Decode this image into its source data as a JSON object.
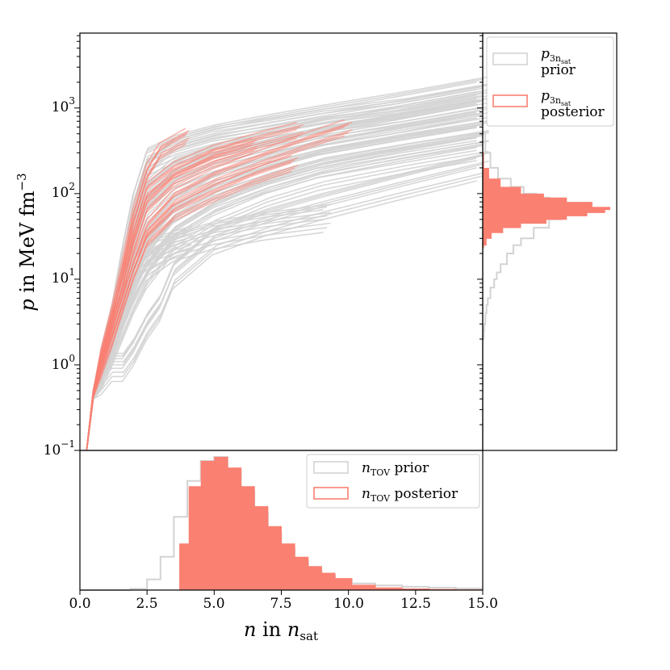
{
  "colors": {
    "prior": "#d3d3d3",
    "posterior": "#fa8072",
    "axes": "#000000"
  },
  "chart_data": [
    {
      "name": "main",
      "type": "line",
      "xlabel": "n in n_sat",
      "xlabel_parts": {
        "var": "n",
        "word": "in",
        "unit": "n",
        "unit_sub": "sat"
      },
      "ylabel": "p in MeV fm^-3",
      "ylabel_parts": {
        "var": "p",
        "word": "in MeV fm",
        "sup": "−3"
      },
      "yscale": "log",
      "xlim": [
        0,
        15
      ],
      "ylim": [
        0.1,
        7500
      ],
      "yticks": [
        {
          "value": 1000,
          "base": "10",
          "exp": "3"
        },
        {
          "value": 100,
          "base": "10",
          "exp": "2"
        },
        {
          "value": 10,
          "base": "10",
          "exp": "1"
        },
        {
          "value": 1,
          "base": "10",
          "exp": "0"
        },
        {
          "value": 0.1,
          "base": "10",
          "exp": "−1"
        }
      ],
      "series": [
        {
          "name": "prior",
          "color": "#d3d3d3",
          "curves": [
            {
              "x": [
                0.25,
                0.5,
                0.8,
                1.2,
                1.6,
                2.0,
                2.5,
                3.5,
                5,
                7,
                9,
                12,
                15
              ],
              "y": [
                0.1,
                0.5,
                1.2,
                4,
                20,
                80,
                250,
                350,
                470,
                620,
                800,
                1150,
                1700
              ]
            },
            {
              "x": [
                0.25,
                0.5,
                0.8,
                1.2,
                1.6,
                2.0,
                2.5,
                3.5,
                5,
                7,
                9,
                12,
                15
              ],
              "y": [
                0.1,
                0.45,
                1.0,
                3,
                10,
                35,
                100,
                180,
                280,
                400,
                560,
                800,
                1200
              ]
            },
            {
              "x": [
                0.25,
                0.5,
                0.8,
                1.2,
                1.6,
                2.0,
                2.5,
                3.5,
                5,
                7,
                9,
                12,
                15
              ],
              "y": [
                0.1,
                0.45,
                0.9,
                2,
                5,
                12,
                30,
                70,
                130,
                210,
                310,
                460,
                650
              ]
            },
            {
              "x": [
                0.25,
                0.5,
                0.8,
                1.2,
                1.6,
                2.0,
                2.5,
                3.5,
                5,
                7,
                9,
                12,
                15
              ],
              "y": [
                0.1,
                0.4,
                0.8,
                1.5,
                3,
                6,
                12,
                30,
                60,
                110,
                170,
                260,
                380
              ]
            },
            {
              "x": [
                0.25,
                0.5,
                0.8,
                1.2,
                1.6,
                2.0,
                2.5,
                3.0,
                3.5,
                5,
                7,
                9,
                12,
                15
              ],
              "y": [
                0.1,
                0.4,
                0.7,
                1.0,
                1.0,
                1.5,
                3,
                5,
                12,
                30,
                50,
                75,
                130,
                220
              ]
            },
            {
              "x": [
                0.25,
                0.5,
                0.8,
                1.2,
                1.6,
                2.0,
                2.5,
                3.5,
                5,
                7,
                9.2
              ],
              "y": [
                0.1,
                0.42,
                0.9,
                2,
                4,
                8,
                15,
                25,
                35,
                45,
                55
              ]
            },
            {
              "x": [
                0.25,
                0.5,
                0.8,
                1.2,
                1.6,
                2.0,
                2.5,
                3.0,
                3.5,
                4.0,
                4.1
              ],
              "y": [
                0.1,
                0.45,
                1.0,
                2.5,
                6,
                14,
                20,
                24,
                27,
                30,
                31
              ]
            },
            {
              "x": [
                0.25,
                0.5,
                0.8,
                1.2,
                1.6,
                2.0,
                2.5,
                3.5,
                5,
                7,
                9,
                12,
                15
              ],
              "y": [
                0.1,
                0.5,
                1.2,
                3.5,
                12,
                50,
                180,
                330,
                450,
                560,
                720,
                950,
                1400
              ]
            },
            {
              "x": [
                0.25,
                0.5,
                0.8,
                1.2,
                1.6,
                2.0,
                2.5,
                3.5,
                5,
                7,
                9,
                12,
                15
              ],
              "y": [
                0.1,
                0.42,
                0.85,
                1.8,
                4,
                10,
                22,
                50,
                95,
                160,
                240,
                350,
                500
              ]
            },
            {
              "x": [
                0.25,
                0.5,
                0.8,
                1.2,
                1.6,
                2.0,
                2.5,
                3.5,
                5,
                7,
                9,
                12,
                15
              ],
              "y": [
                0.1,
                0.45,
                1.1,
                3,
                8,
                25,
                70,
                140,
                220,
                320,
                450,
                650,
                950
              ]
            }
          ]
        },
        {
          "name": "posterior",
          "color": "#fa8072",
          "curves": [
            {
              "x": [
                0.25,
                0.5,
                0.8,
                1.2,
                1.6,
                2.0,
                2.5,
                3.5,
                5,
                7,
                8.5,
                10
              ],
              "y": [
                0.1,
                0.45,
                1.0,
                2.5,
                6,
                15,
                40,
                90,
                160,
                280,
                420,
                600
              ]
            },
            {
              "x": [
                0.25,
                0.5,
                0.8,
                1.2,
                1.6,
                2.0,
                2.5,
                3.5,
                5,
                7,
                8.2
              ],
              "y": [
                0.1,
                0.5,
                1.2,
                3.5,
                10,
                35,
                110,
                190,
                300,
                450,
                560
              ]
            },
            {
              "x": [
                0.25,
                0.5,
                0.8,
                1.2,
                1.6,
                2.0,
                2.5,
                3.5,
                5,
                6.5
              ],
              "y": [
                0.1,
                0.48,
                1.1,
                3,
                8,
                25,
                75,
                150,
                260,
                370
              ]
            },
            {
              "x": [
                0.25,
                0.5,
                0.8,
                1.2,
                1.6,
                2.0,
                2.5,
                3.5,
                5,
                6.5,
                8.0
              ],
              "y": [
                0.1,
                0.42,
                0.9,
                2,
                5,
                12,
                30,
                60,
                100,
                160,
                230
              ]
            },
            {
              "x": [
                0.25,
                0.5,
                0.8,
                1.2,
                1.6,
                2.0,
                2.5,
                3.0,
                4.0
              ],
              "y": [
                0.1,
                0.5,
                1.3,
                4,
                14,
                55,
                180,
                320,
                480
              ]
            }
          ]
        }
      ],
      "legend": {
        "location": "top-right",
        "entries": [
          {
            "series": "prior",
            "var": "p",
            "sub": "3n",
            "subsub": "sat",
            "label": "prior"
          },
          {
            "series": "posterior",
            "var": "p",
            "sub": "3n",
            "subsub": "sat",
            "label": "posterior"
          }
        ]
      }
    },
    {
      "name": "p_3nsat_marginal",
      "type": "histogram",
      "orientation": "horizontal",
      "shares_y_with": "main",
      "series": [
        {
          "name": "prior",
          "style": "step",
          "y_centers": [
            500,
            300,
            200,
            150,
            120,
            100,
            90,
            80,
            70,
            60,
            50,
            40,
            30,
            25,
            20,
            15,
            12,
            10,
            8,
            6,
            5,
            4,
            3,
            2.5,
            2
          ],
          "density": [
            0.02,
            0.06,
            0.12,
            0.22,
            0.32,
            0.42,
            0.52,
            0.62,
            0.7,
            0.62,
            0.52,
            0.4,
            0.3,
            0.24,
            0.19,
            0.14,
            0.11,
            0.09,
            0.06,
            0.04,
            0.03,
            0.02,
            0.012,
            0.008,
            0.005
          ]
        },
        {
          "name": "posterior",
          "style": "filled",
          "y_centers": [
            300,
            200,
            150,
            120,
            100,
            90,
            80,
            70,
            65,
            60,
            55,
            50,
            45,
            40,
            35,
            30,
            25
          ],
          "density": [
            0.01,
            0.05,
            0.14,
            0.3,
            0.48,
            0.66,
            0.86,
            1.0,
            0.96,
            0.82,
            0.66,
            0.5,
            0.3,
            0.16,
            0.07,
            0.03,
            0.01
          ]
        }
      ]
    },
    {
      "name": "n_TOV_marginal",
      "type": "histogram",
      "orientation": "vertical",
      "shares_x_with": "main",
      "xticks": [
        "0.0",
        "2.5",
        "5.0",
        "7.5",
        "10.0",
        "12.5",
        "15.0"
      ],
      "xtick_values": [
        0,
        2.5,
        5,
        7.5,
        10,
        12.5,
        15
      ],
      "series": [
        {
          "name": "prior",
          "style": "step",
          "x_centers": [
            0.5,
            1.5,
            2.25,
            2.75,
            3.25,
            3.75,
            4.25,
            4.75,
            5.25,
            5.75,
            6.25,
            6.75,
            7.25,
            7.75,
            8.25,
            8.75,
            9.25,
            9.75,
            10.5,
            11.5,
            12.5,
            13.5,
            14.5
          ],
          "density": [
            0.0,
            0.0,
            0.01,
            0.08,
            0.25,
            0.55,
            0.82,
            0.97,
            1.0,
            0.9,
            0.74,
            0.58,
            0.43,
            0.31,
            0.22,
            0.15,
            0.11,
            0.08,
            0.05,
            0.035,
            0.025,
            0.018,
            0.012
          ]
        },
        {
          "name": "posterior",
          "style": "filled",
          "x_start": 3.7,
          "x_centers": [
            3.85,
            4.25,
            4.75,
            5.25,
            5.75,
            6.25,
            6.75,
            7.25,
            7.75,
            8.25,
            8.75,
            9.25,
            9.75,
            10.5,
            11.5,
            12.5,
            13.5,
            14.5
          ],
          "density": [
            0.35,
            0.78,
            0.97,
            1.0,
            0.92,
            0.78,
            0.63,
            0.48,
            0.35,
            0.25,
            0.18,
            0.13,
            0.09,
            0.04,
            0.02,
            0.012,
            0.008,
            0.005
          ]
        }
      ],
      "legend": {
        "location": "top-right",
        "entries": [
          {
            "series": "prior",
            "var": "n",
            "sub": "TOV",
            "label": "prior"
          },
          {
            "series": "posterior",
            "var": "n",
            "sub": "TOV",
            "label": "posterior"
          }
        ]
      }
    }
  ]
}
